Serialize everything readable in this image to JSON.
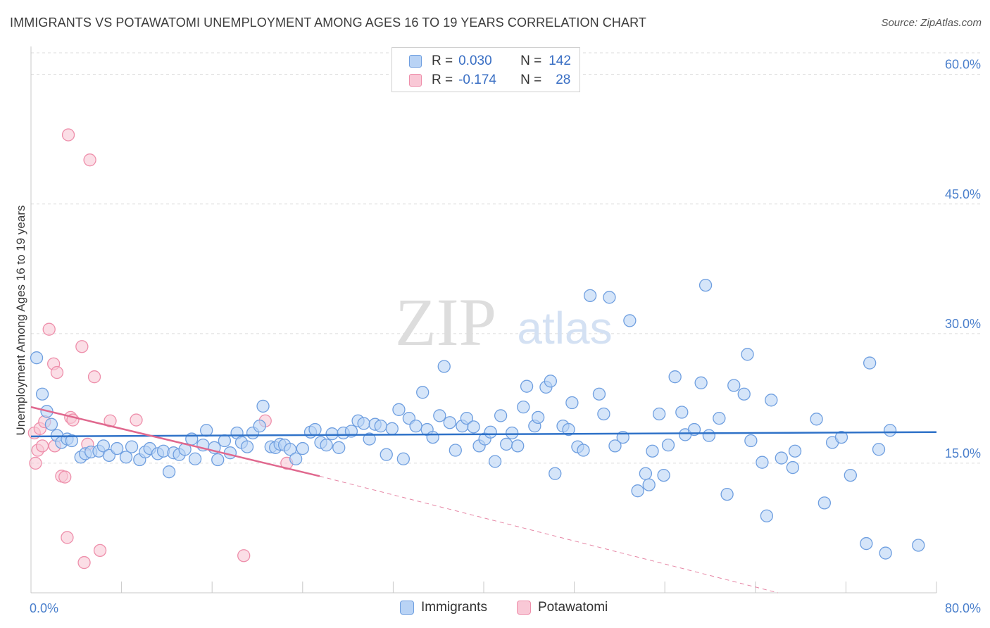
{
  "title": "IMMIGRANTS VS POTAWATOMI UNEMPLOYMENT AMONG AGES 16 TO 19 YEARS CORRELATION CHART",
  "source": "Source: ZipAtlas.com",
  "watermark": {
    "zip": "ZIP",
    "atlas": "atlas"
  },
  "colors": {
    "blue_fill": "#b9d3f5",
    "blue_stroke": "#6f9fe0",
    "blue_line": "#2f72c8",
    "pink_fill": "#f9c8d6",
    "pink_stroke": "#ee8fab",
    "pink_line": "#e0688e",
    "tick_text": "#4a7fcc",
    "grid": "#dcdcdc"
  },
  "legend": {
    "rows": [
      {
        "r_label": "R =",
        "r_value": "0.030",
        "n_label": "N =",
        "n_value": "142"
      },
      {
        "r_label": "R =",
        "r_value": "-0.174",
        "n_label": "N =",
        "n_value": "28"
      }
    ]
  },
  "bottom_legend": {
    "immigrants": "Immigrants",
    "potawatomi": "Potawatomi"
  },
  "chart_data": {
    "type": "scatter",
    "title": "IMMIGRANTS VS POTAWATOMI UNEMPLOYMENT AMONG AGES 16 TO 19 YEARS CORRELATION CHART",
    "xlabel": "",
    "ylabel": "Unemployment Among Ages 16 to 19 years",
    "xlim": [
      0,
      80
    ],
    "ylim": [
      0,
      62.5
    ],
    "x_tick_labels": [
      "0.0%",
      "80.0%"
    ],
    "y_ticks": [
      15,
      30,
      45,
      60
    ],
    "y_tick_labels": [
      "15.0%",
      "30.0%",
      "45.0%",
      "60.0%"
    ],
    "grid": true,
    "legend_placement": "top-center",
    "series": [
      {
        "name": "Immigrants",
        "color": "#6f9fe0",
        "trend": {
          "x": [
            0,
            80
          ],
          "y": [
            18.1,
            18.6
          ]
        },
        "points": [
          [
            0.5,
            27.2
          ],
          [
            1,
            23
          ],
          [
            1.4,
            21
          ],
          [
            1.8,
            19.5
          ],
          [
            2.3,
            18.2
          ],
          [
            2.7,
            17.4
          ],
          [
            3.2,
            17.8
          ],
          [
            3.6,
            17.6
          ],
          [
            4.4,
            15.7
          ],
          [
            4.8,
            16.1
          ],
          [
            5.3,
            16.3
          ],
          [
            6,
            16.4
          ],
          [
            6.4,
            17
          ],
          [
            6.9,
            15.9
          ],
          [
            7.6,
            16.7
          ],
          [
            8.4,
            15.7
          ],
          [
            8.9,
            16.9
          ],
          [
            9.6,
            15.4
          ],
          [
            10.1,
            16.3
          ],
          [
            10.5,
            16.7
          ],
          [
            11.2,
            16.1
          ],
          [
            11.7,
            16.4
          ],
          [
            12.2,
            14
          ],
          [
            12.6,
            16.2
          ],
          [
            13.1,
            16
          ],
          [
            13.6,
            16.6
          ],
          [
            14.2,
            17.8
          ],
          [
            14.5,
            15.5
          ],
          [
            15.2,
            17.1
          ],
          [
            15.5,
            18.8
          ],
          [
            16.2,
            16.8
          ],
          [
            16.5,
            15.4
          ],
          [
            17.1,
            17.6
          ],
          [
            17.6,
            16.2
          ],
          [
            18.2,
            18.5
          ],
          [
            18.6,
            17.4
          ],
          [
            19.1,
            16.9
          ],
          [
            19.6,
            18.5
          ],
          [
            20.2,
            19.3
          ],
          [
            20.5,
            21.6
          ],
          [
            21.2,
            16.9
          ],
          [
            21.6,
            16.8
          ],
          [
            22,
            17.2
          ],
          [
            22.4,
            17.1
          ],
          [
            22.9,
            16.6
          ],
          [
            23.4,
            15.5
          ],
          [
            24,
            16.7
          ],
          [
            24.7,
            18.6
          ],
          [
            25.1,
            18.9
          ],
          [
            25.6,
            17.4
          ],
          [
            26.1,
            17.1
          ],
          [
            26.6,
            18.4
          ],
          [
            27.2,
            16.8
          ],
          [
            27.6,
            18.5
          ],
          [
            28.3,
            18.7
          ],
          [
            28.9,
            19.9
          ],
          [
            29.4,
            19.6
          ],
          [
            29.9,
            17.8
          ],
          [
            30.4,
            19.5
          ],
          [
            30.9,
            19.3
          ],
          [
            31.4,
            16
          ],
          [
            31.9,
            19
          ],
          [
            32.5,
            21.2
          ],
          [
            32.9,
            15.5
          ],
          [
            33.4,
            20.2
          ],
          [
            34,
            19.3
          ],
          [
            34.6,
            23.2
          ],
          [
            35,
            18.9
          ],
          [
            35.5,
            18
          ],
          [
            36.1,
            20.5
          ],
          [
            36.5,
            26.2
          ],
          [
            37,
            19.7
          ],
          [
            37.5,
            16.5
          ],
          [
            38.1,
            19.3
          ],
          [
            38.5,
            20.2
          ],
          [
            39.1,
            19.2
          ],
          [
            39.6,
            17
          ],
          [
            40.1,
            17.8
          ],
          [
            40.6,
            18.6
          ],
          [
            41,
            15.2
          ],
          [
            41.5,
            20.5
          ],
          [
            42,
            17.2
          ],
          [
            42.5,
            18.5
          ],
          [
            43,
            17
          ],
          [
            43.5,
            21.5
          ],
          [
            43.8,
            23.9
          ],
          [
            44.5,
            19.3
          ],
          [
            44.8,
            20.3
          ],
          [
            45.5,
            23.8
          ],
          [
            45.9,
            24.5
          ],
          [
            46.3,
            13.8
          ],
          [
            47,
            19.3
          ],
          [
            47.5,
            18.9
          ],
          [
            47.8,
            22
          ],
          [
            48.3,
            16.9
          ],
          [
            48.8,
            16.5
          ],
          [
            49.4,
            34.4
          ],
          [
            50.2,
            23
          ],
          [
            50.6,
            20.7
          ],
          [
            51.1,
            34.2
          ],
          [
            51.6,
            17
          ],
          [
            52.3,
            18
          ],
          [
            52.9,
            31.5
          ],
          [
            53.6,
            11.8
          ],
          [
            54.3,
            13.8
          ],
          [
            54.6,
            12.5
          ],
          [
            54.9,
            16.4
          ],
          [
            55.5,
            20.7
          ],
          [
            55.9,
            13.6
          ],
          [
            56.3,
            17.1
          ],
          [
            56.9,
            25
          ],
          [
            57.5,
            20.9
          ],
          [
            57.8,
            18.3
          ],
          [
            58.6,
            18.9
          ],
          [
            59.2,
            24.3
          ],
          [
            59.6,
            35.6
          ],
          [
            59.9,
            18.2
          ],
          [
            60.8,
            20.2
          ],
          [
            61.5,
            11.4
          ],
          [
            62.1,
            24
          ],
          [
            63,
            23
          ],
          [
            63.3,
            27.6
          ],
          [
            63.6,
            17.6
          ],
          [
            64.6,
            15.1
          ],
          [
            65,
            8.9
          ],
          [
            65.4,
            22.3
          ],
          [
            66.3,
            15.6
          ],
          [
            67.3,
            14.5
          ],
          [
            67.5,
            16.4
          ],
          [
            69.4,
            20.1
          ],
          [
            70.1,
            10.4
          ],
          [
            70.8,
            17.4
          ],
          [
            71.6,
            18
          ],
          [
            72.4,
            13.6
          ],
          [
            73.8,
            5.7
          ],
          [
            74.1,
            26.6
          ],
          [
            74.9,
            16.6
          ],
          [
            75.5,
            4.6
          ],
          [
            75.9,
            18.8
          ],
          [
            78.4,
            5.5
          ]
        ]
      },
      {
        "name": "Potawatomi",
        "color": "#ee8fab",
        "trend": {
          "x": [
            0,
            25.5
          ],
          "y": [
            21.5,
            13.5
          ]
        },
        "trend_dashed": {
          "x": [
            25.5,
            66
          ],
          "y": [
            13.5,
            0
          ]
        },
        "points": [
          [
            0.3,
            18.5
          ],
          [
            0.4,
            15
          ],
          [
            0.6,
            16.5
          ],
          [
            0.8,
            19
          ],
          [
            1,
            17
          ],
          [
            1.2,
            19.8
          ],
          [
            2.1,
            17
          ],
          [
            2.7,
            13.5
          ],
          [
            3,
            13.4
          ],
          [
            1.6,
            30.5
          ],
          [
            2,
            26.5
          ],
          [
            2.3,
            25.5
          ],
          [
            3.2,
            6.4
          ],
          [
            3.3,
            53
          ],
          [
            3.5,
            20.3
          ],
          [
            3.7,
            20
          ],
          [
            4.5,
            28.5
          ],
          [
            4.7,
            3.5
          ],
          [
            5,
            17.2
          ],
          [
            5.2,
            50.1
          ],
          [
            5.6,
            25
          ],
          [
            6.1,
            4.9
          ],
          [
            7,
            19.9
          ],
          [
            9.3,
            20
          ],
          [
            18.8,
            4.3
          ],
          [
            20.7,
            19.9
          ],
          [
            22.6,
            15
          ]
        ]
      }
    ]
  }
}
